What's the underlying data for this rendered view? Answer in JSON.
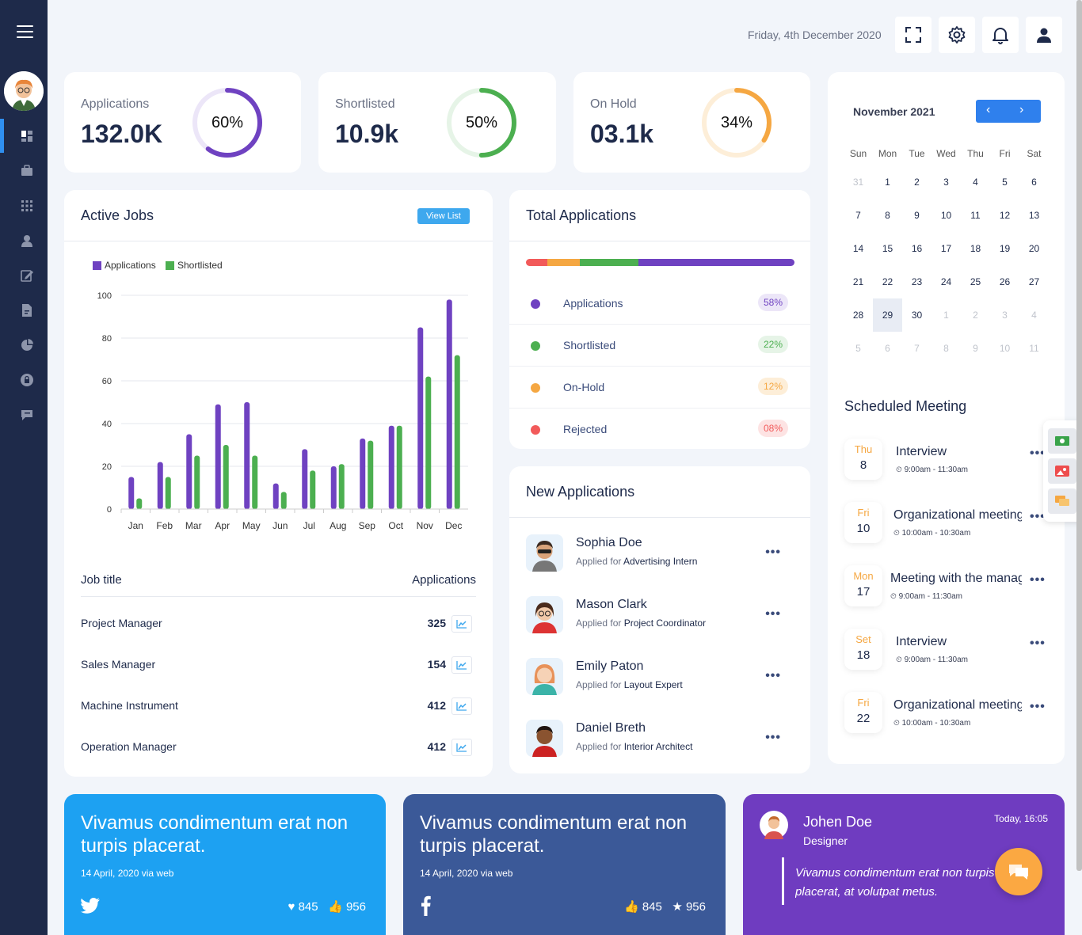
{
  "header": {
    "date": "Friday, 4th December 2020"
  },
  "stats": [
    {
      "label": "Applications",
      "value": "132.0K",
      "percent_text": "60%",
      "percent": 60,
      "color": "#6f42c1",
      "track": "#ece6f8"
    },
    {
      "label": "Shortlisted",
      "value": "10.9k",
      "percent_text": "50%",
      "percent": 50,
      "color": "#4caf50",
      "track": "#e6f4e7"
    },
    {
      "label": "On Hold",
      "value": "03.1k",
      "percent_text": "34%",
      "percent": 34,
      "color": "#f5a742",
      "track": "#fdeed8"
    }
  ],
  "active_jobs": {
    "title": "Active Jobs",
    "view_list": "View List",
    "legend": [
      "Applications",
      "Shortlisted"
    ],
    "table_header": {
      "job": "Job title",
      "apps": "Applications"
    },
    "rows": [
      {
        "name": "Project Manager",
        "count": "325"
      },
      {
        "name": "Sales Manager",
        "count": "154"
      },
      {
        "name": "Machine Instrument",
        "count": "412"
      },
      {
        "name": "Operation Manager",
        "count": "412"
      }
    ]
  },
  "chart_data": {
    "type": "bar",
    "categories": [
      "Jan",
      "Feb",
      "Mar",
      "Apr",
      "May",
      "Jun",
      "Jul",
      "Aug",
      "Sep",
      "Oct",
      "Nov",
      "Dec"
    ],
    "series": [
      {
        "name": "Applications",
        "color": "#6f42c1",
        "values": [
          15,
          22,
          35,
          49,
          50,
          12,
          28,
          20,
          33,
          39,
          85,
          98
        ]
      },
      {
        "name": "Shortlisted",
        "color": "#4caf50",
        "values": [
          5,
          15,
          25,
          30,
          25,
          8,
          18,
          21,
          32,
          39,
          62,
          72
        ]
      }
    ],
    "ylim": [
      0,
      100
    ],
    "yticks": [
      0,
      20,
      40,
      60,
      80,
      100
    ],
    "grid": true,
    "legend": "top-left"
  },
  "total_applications": {
    "title": "Total Applications",
    "items": [
      {
        "label": "Applications",
        "pct": "58%",
        "value": 58,
        "color": "#6f42c1",
        "pill_bg": "#ece6f8",
        "pill_fg": "#6f42c1"
      },
      {
        "label": "Shortlisted",
        "pct": "22%",
        "value": 22,
        "color": "#4caf50",
        "pill_bg": "#e6f4e7",
        "pill_fg": "#4caf50"
      },
      {
        "label": "On-Hold",
        "pct": "12%",
        "value": 12,
        "color": "#f5a742",
        "pill_bg": "#fdeed8",
        "pill_fg": "#f5a742"
      },
      {
        "label": "Rejected",
        "pct": "08%",
        "value": 8,
        "color": "#f25a5a",
        "pill_bg": "#fde3e3",
        "pill_fg": "#f25a5a"
      }
    ]
  },
  "new_applications": {
    "title": "New Applications",
    "applied_for": "Applied for",
    "items": [
      {
        "name": "Sophia Doe",
        "role": "Advertising Intern"
      },
      {
        "name": "Mason Clark",
        "role": "Project Coordinator"
      },
      {
        "name": "Emily Paton",
        "role": "Layout Expert"
      },
      {
        "name": "Daniel Breth",
        "role": "Interior Architect"
      }
    ]
  },
  "calendar": {
    "month": "November 2021",
    "prev": "‹",
    "next": "›",
    "weekdays": [
      "Sun",
      "Mon",
      "Tue",
      "Wed",
      "Thu",
      "Fri",
      "Sat"
    ],
    "weeks": [
      [
        "31",
        "1",
        "2",
        "3",
        "4",
        "5",
        "6"
      ],
      [
        "7",
        "8",
        "9",
        "10",
        "11",
        "12",
        "13"
      ],
      [
        "14",
        "15",
        "16",
        "17",
        "18",
        "19",
        "20"
      ],
      [
        "21",
        "22",
        "23",
        "24",
        "25",
        "26",
        "27"
      ],
      [
        "28",
        "29",
        "30",
        "1",
        "2",
        "3",
        "4"
      ],
      [
        "5",
        "6",
        "7",
        "8",
        "9",
        "10",
        "11"
      ]
    ],
    "selected": "29"
  },
  "meetings": {
    "title": "Scheduled Meeting",
    "items": [
      {
        "day": "Thu",
        "date": "8",
        "title": "Interview",
        "time": "9:00am - 11:30am"
      },
      {
        "day": "Fri",
        "date": "10",
        "title": "Organizational meeting",
        "time": "10:00am - 10:30am"
      },
      {
        "day": "Mon",
        "date": "17",
        "title": "Meeting with the manager",
        "time": "9:00am - 11:30am"
      },
      {
        "day": "Set",
        "date": "18",
        "title": "Interview",
        "time": "9:00am - 11:30am"
      },
      {
        "day": "Fri",
        "date": "22",
        "title": "Organizational meeting",
        "time": "10:00am - 10:30am"
      }
    ]
  },
  "social": {
    "twitter": {
      "text": "Vivamus condimentum erat non turpis placerat.",
      "meta": "14 April, 2020 via web",
      "likes": "845",
      "thumbs": "956",
      "color": "#1da1f2"
    },
    "facebook": {
      "text": "Vivamus condimentum erat non turpis placerat.",
      "meta": "14 April, 2020 via web",
      "likes": "845",
      "stars": "956",
      "color": "#3b5998"
    },
    "testimonial": {
      "name": "Johen Doe",
      "role": "Designer",
      "time": "Today, 16:05",
      "quote": "Vivamus condimentum erat non turpis placerat, at volutpat metus.",
      "color": "#6f3cc0"
    }
  }
}
